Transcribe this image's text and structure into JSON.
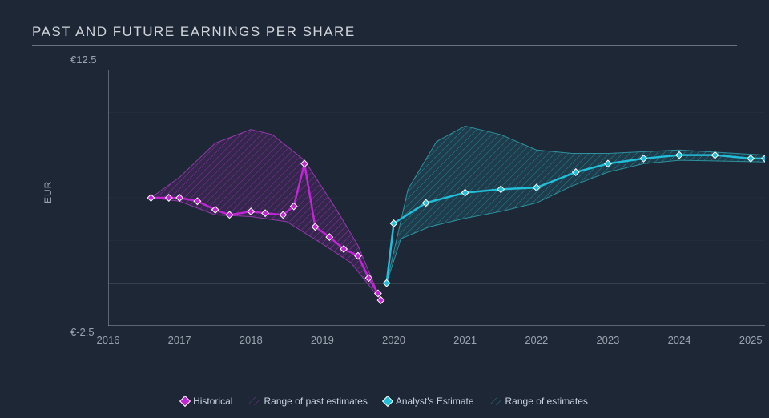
{
  "title": "PAST AND FUTURE EARNINGS PER SHARE",
  "chart": {
    "type": "line-with-range",
    "background_color": "#1e2736",
    "text_color": "#9ca3af",
    "grid_color": "#4b5563",
    "axis_color": "#9ca3af",
    "title_fontsize": 17,
    "label_fontsize": 13,
    "ylabel": "EUR",
    "ylim": [
      -2.5,
      12.5
    ],
    "y_top_label": "€12.5",
    "y_bottom_label": "€-2.5",
    "x_ticks": [
      "2016",
      "2017",
      "2018",
      "2019",
      "2020",
      "2021",
      "2022",
      "2023",
      "2024",
      "2025"
    ],
    "xlim": [
      2016,
      2025.2
    ],
    "zero_line_y": 0,
    "series": {
      "historical": {
        "color": "#c026d3",
        "marker": "diamond",
        "marker_border": "#ffffff",
        "line_width": 2.5,
        "points": [
          [
            2016.6,
            5.0
          ],
          [
            2016.85,
            5.0
          ],
          [
            2017.0,
            5.0
          ],
          [
            2017.25,
            4.8
          ],
          [
            2017.5,
            4.3
          ],
          [
            2017.7,
            4.0
          ],
          [
            2018.0,
            4.2
          ],
          [
            2018.2,
            4.1
          ],
          [
            2018.45,
            4.0
          ],
          [
            2018.6,
            4.5
          ],
          [
            2018.75,
            7.0
          ],
          [
            2018.9,
            3.3
          ],
          [
            2019.1,
            2.7
          ],
          [
            2019.3,
            2.0
          ],
          [
            2019.5,
            1.6
          ],
          [
            2019.65,
            0.3
          ],
          [
            2019.78,
            -0.6
          ],
          [
            2019.82,
            -1.0
          ]
        ]
      },
      "historical_range": {
        "fill_color": "#c026d3",
        "fill_opacity": 0.14,
        "hatch_color": "#d946ef",
        "upper": [
          [
            2016.6,
            5.0
          ],
          [
            2017.0,
            6.2
          ],
          [
            2017.5,
            8.2
          ],
          [
            2018.0,
            9.0
          ],
          [
            2018.3,
            8.7
          ],
          [
            2018.75,
            7.2
          ],
          [
            2019.2,
            4.3
          ],
          [
            2019.5,
            2.2
          ],
          [
            2019.82,
            -1.0
          ]
        ],
        "lower": [
          [
            2016.6,
            5.0
          ],
          [
            2017.0,
            4.8
          ],
          [
            2017.5,
            4.0
          ],
          [
            2018.0,
            3.9
          ],
          [
            2018.5,
            3.6
          ],
          [
            2019.0,
            2.3
          ],
          [
            2019.4,
            1.2
          ],
          [
            2019.82,
            -1.0
          ]
        ]
      },
      "estimate": {
        "color": "#22bdd8",
        "marker": "diamond",
        "marker_border": "#ffffff",
        "line_width": 2.5,
        "points": [
          [
            2019.9,
            0.0
          ],
          [
            2020.0,
            3.5
          ],
          [
            2020.45,
            4.7
          ],
          [
            2021.0,
            5.3
          ],
          [
            2021.5,
            5.5
          ],
          [
            2022.0,
            5.6
          ],
          [
            2022.55,
            6.5
          ],
          [
            2023.0,
            7.0
          ],
          [
            2023.5,
            7.3
          ],
          [
            2024.0,
            7.5
          ],
          [
            2024.5,
            7.5
          ],
          [
            2025.0,
            7.3
          ],
          [
            2025.2,
            7.3
          ]
        ]
      },
      "estimate_range": {
        "fill_color": "#22bdd8",
        "fill_opacity": 0.14,
        "hatch_color": "#38cdd8",
        "upper": [
          [
            2019.9,
            0.0
          ],
          [
            2020.2,
            5.5
          ],
          [
            2020.6,
            8.3
          ],
          [
            2021.0,
            9.2
          ],
          [
            2021.5,
            8.7
          ],
          [
            2022.0,
            7.8
          ],
          [
            2022.5,
            7.6
          ],
          [
            2023.0,
            7.6
          ],
          [
            2023.5,
            7.7
          ],
          [
            2024.0,
            7.8
          ],
          [
            2025.2,
            7.5
          ]
        ],
        "lower": [
          [
            2019.9,
            0.0
          ],
          [
            2020.1,
            2.6
          ],
          [
            2020.5,
            3.3
          ],
          [
            2021.0,
            3.8
          ],
          [
            2021.5,
            4.2
          ],
          [
            2022.0,
            4.7
          ],
          [
            2022.5,
            5.7
          ],
          [
            2023.0,
            6.5
          ],
          [
            2023.5,
            7.0
          ],
          [
            2024.0,
            7.2
          ],
          [
            2025.2,
            7.1
          ]
        ]
      }
    },
    "legend": {
      "historical": "Historical",
      "historical_range": "Range of past estimates",
      "estimate": "Analyst's Estimate",
      "estimate_range": "Range of estimates"
    }
  }
}
